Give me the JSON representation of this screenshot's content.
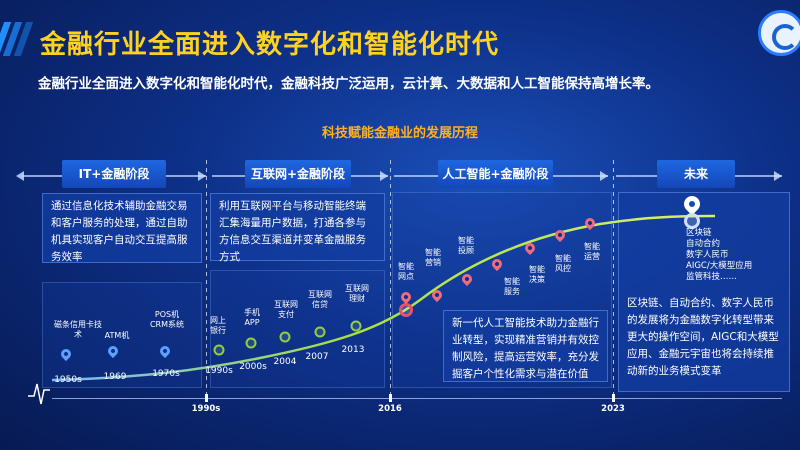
{
  "header": {
    "title": "金融行业全面进入数字化和智能化时代",
    "subtitle": "金融行业全面进入数字化和智能化时代，金融科技广泛运用，云计算、大数据和人工智能保持高增长率。",
    "section_title": "科技赋能金融业的发展历程"
  },
  "phases": {
    "it": {
      "label": "IT+金融阶段",
      "desc": "通过信息化技术辅助金融交易和客户服务的处理，通过自助机具实现客户自动交互提高服务效率"
    },
    "net": {
      "label": "互联网+金融阶段",
      "desc": "利用互联网平台与移动智能终端汇集海量用户数据，打通各参与方信息交互渠道并变革金融服务方式"
    },
    "ai": {
      "label": "人工智能+金融阶段",
      "desc": "新一代人工智能技术助力金融行业转型，实现精准营销并有效控制风险，提高运营效率，充分发掘客户个性化需求与潜在价值"
    },
    "future": {
      "label": "未来",
      "desc": "区块链、自动合约、数字人民币的发展将为金融数字化转型带来更大的操作空间，AIGC和大模型应用、金融元宇宙也将会持续推动新的业务模式变革"
    }
  },
  "axis": {
    "years": [
      "1990s",
      "2016",
      "2023"
    ]
  },
  "milestones": {
    "it": [
      {
        "label": "磁条信用卡技术",
        "year": "1950s"
      },
      {
        "label": "ATM机",
        "year": "1969"
      },
      {
        "label": "POS机CRM系统",
        "year": "1970s"
      }
    ],
    "net": [
      {
        "label": "网上银行",
        "year": "1990s"
      },
      {
        "label": "手机APP",
        "year": "2000s"
      },
      {
        "label": "互联网支付",
        "year": "2004"
      },
      {
        "label": "互联网信贷",
        "year": "2007"
      },
      {
        "label": "互联网理财",
        "year": "2013"
      }
    ],
    "ai": [
      {
        "label": "智能网点"
      },
      {
        "label": "智能营销"
      },
      {
        "label": "智能投顾"
      },
      {
        "label": "智能服务"
      },
      {
        "label": "智能决策"
      },
      {
        "label": "智能风控"
      },
      {
        "label": "智能运营"
      }
    ],
    "future": [
      "区块链",
      "自动合约",
      "数字人民币",
      "AIGC/大模型应用",
      "监管科技……"
    ]
  },
  "colors": {
    "title": "#ffd21f",
    "section": "#ffb020",
    "curve": "#a8e040",
    "accent": "#1f67e0"
  }
}
